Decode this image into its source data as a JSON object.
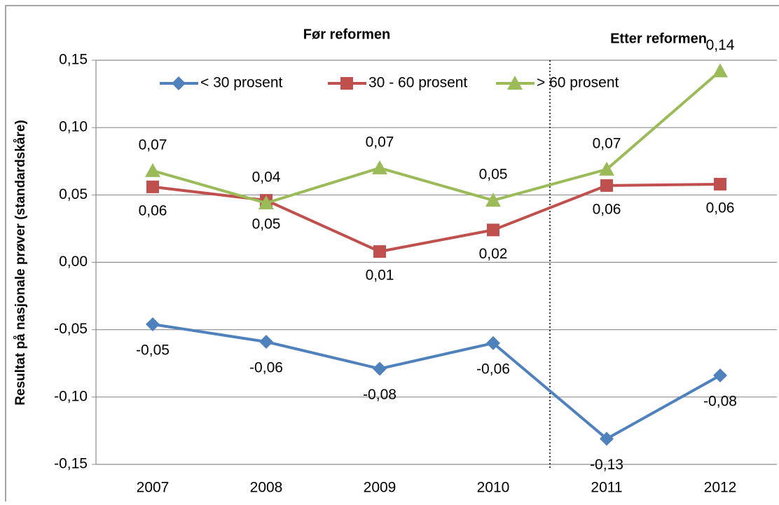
{
  "chart_data": {
    "type": "line",
    "y_label": "Resultat på nasjonale prøver (standardskåre)",
    "annotations": [
      "Før reformen",
      "Etter reformen"
    ],
    "categories": [
      "2007",
      "2008",
      "2009",
      "2010",
      "2011",
      "2012"
    ],
    "series": [
      {
        "name": "< 30 prosent",
        "color": "#4f81bd",
        "marker": "diamond",
        "values": [
          -0.046,
          -0.059,
          -0.079,
          -0.06,
          -0.131,
          -0.084
        ],
        "value_labels": [
          "-0,05",
          "-0,06",
          "-0,08",
          "-0,06",
          "-0,13",
          "-0,08"
        ]
      },
      {
        "name": "30 - 60 prosent",
        "color": "#c0504d",
        "marker": "square",
        "values": [
          0.056,
          0.046,
          0.008,
          0.024,
          0.057,
          0.058
        ],
        "value_labels": [
          "0,06",
          "0,05",
          "0,01",
          "0,02",
          "0,06",
          "0,06"
        ]
      },
      {
        "name": "> 60 prosent",
        "color": "#9bbb59",
        "marker": "triangle",
        "values": [
          0.068,
          0.044,
          0.07,
          0.046,
          0.069,
          0.142
        ],
        "value_labels": [
          "0,07",
          "0,04",
          "0,07",
          "0,05",
          "0,07",
          "0,14"
        ]
      }
    ],
    "ylim": [
      -0.15,
      0.15
    ],
    "yticks": [
      {
        "value": -0.15,
        "label": "-0,15"
      },
      {
        "value": -0.1,
        "label": "-0,10"
      },
      {
        "value": -0.05,
        "label": "-0,05"
      },
      {
        "value": 0,
        "label": "0,00"
      },
      {
        "value": 0.05,
        "label": "0,05"
      },
      {
        "value": 0.1,
        "label": "0,10"
      },
      {
        "value": 0.15,
        "label": "0,15"
      }
    ],
    "grid": true,
    "legend": "top"
  }
}
